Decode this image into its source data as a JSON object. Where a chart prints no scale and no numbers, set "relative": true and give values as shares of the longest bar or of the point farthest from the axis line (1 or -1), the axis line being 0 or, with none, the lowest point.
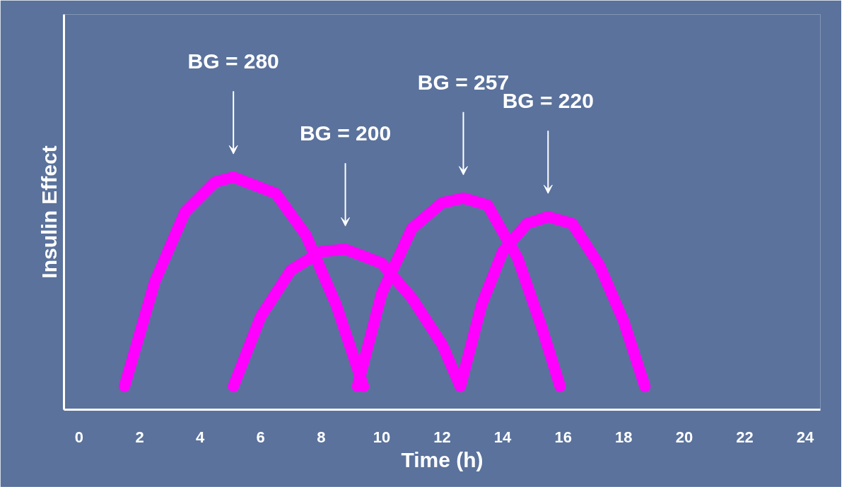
{
  "chart_data": {
    "type": "line",
    "relative": true,
    "xlabel": "Time (h)",
    "ylabel": "Insulin Effect",
    "xlim": [
      -0.5,
      24.5
    ],
    "xticks": [
      0,
      2,
      4,
      6,
      8,
      10,
      12,
      14,
      16,
      18,
      20,
      22,
      24
    ],
    "grid": false,
    "line_style": "solid",
    "series": [
      {
        "color": "#ff00ff",
        "x": [
          1.5,
          2.5,
          3.5,
          4.5,
          5.1,
          6.5,
          7.5,
          8.5,
          9.4
        ],
        "values": [
          0.1,
          0.55,
          0.85,
          0.98,
          1.0,
          0.93,
          0.75,
          0.45,
          0.1
        ]
      },
      {
        "color": "#ff00ff",
        "x": [
          5.1,
          6.0,
          7.0,
          8.0,
          8.8,
          10.0,
          11.0,
          12.0,
          12.6
        ],
        "values": [
          0.1,
          0.4,
          0.6,
          0.68,
          0.69,
          0.63,
          0.48,
          0.28,
          0.1
        ]
      },
      {
        "color": "#ff00ff",
        "x": [
          9.2,
          10.0,
          11.0,
          12.0,
          12.7,
          13.5,
          14.5,
          15.3,
          15.9
        ],
        "values": [
          0.1,
          0.5,
          0.78,
          0.89,
          0.91,
          0.88,
          0.65,
          0.35,
          0.1
        ]
      },
      {
        "color": "#ff00ff",
        "x": [
          12.6,
          13.3,
          14.0,
          14.8,
          15.5,
          16.3,
          17.2,
          18.0,
          18.7
        ],
        "values": [
          0.1,
          0.45,
          0.68,
          0.8,
          0.83,
          0.8,
          0.62,
          0.38,
          0.1
        ]
      }
    ],
    "annotations": [
      "BG = 280",
      "BG = 200",
      "BG = 257",
      "BG = 220"
    ]
  }
}
